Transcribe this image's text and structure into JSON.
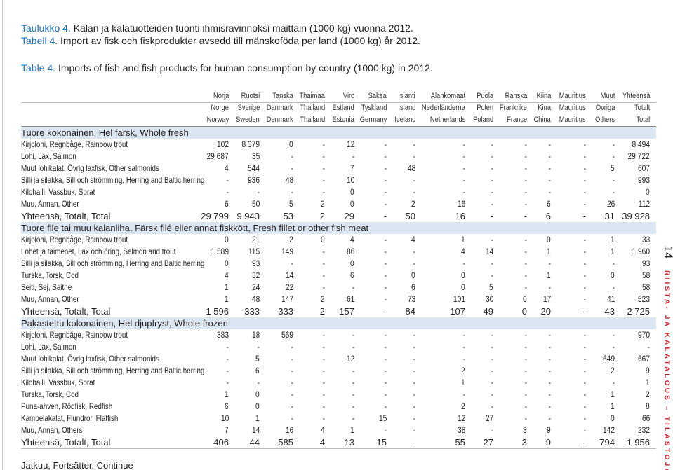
{
  "titles": [
    {
      "number": "Taulukko 4.",
      "text": "Kalan ja kalatuotteiden tuonti ihmisravinnoksi maittain (1000 kg) vuonna 2012."
    },
    {
      "number": "Tabell 4.",
      "text": "Import av fisk och fiskprodukter avsedd till mänskoföda per land (1000 kg) år 2012."
    },
    {
      "number": "Table 4.",
      "text": "Imports of fish and fish products for human consumption by country (1000 kg) in 2012."
    }
  ],
  "table": {
    "header": [
      [
        "Norja",
        "Ruotsi",
        "Tanska",
        "Thaimaa",
        "Viro",
        "Saksa",
        "Islanti",
        "Alankomaat",
        "Puola",
        "Ranska",
        "Kiina",
        "Mauritius",
        "Muut",
        "Yhteensä"
      ],
      [
        "Norge",
        "Sverige",
        "Danmark",
        "Thailand",
        "Estland",
        "Tyskland",
        "Island",
        "Nederländerna",
        "Polen",
        "Frankrike",
        "Kina",
        "Mauritius",
        "Övriga",
        "Totalt"
      ],
      [
        "Norway",
        "Sweden",
        "Denmark",
        "Thailand",
        "Estonia",
        "Germany",
        "Iceland",
        "Netherlands",
        "Poland",
        "France",
        "China",
        "Mauritius",
        "Others",
        "Total"
      ]
    ],
    "sections": [
      {
        "title": "Tuore kokonainen, Hel färsk, Whole fresh",
        "rows": [
          {
            "label": "Kirjolohi, Regnbåge, Rainbow trout",
            "cells": [
              "102",
              "8 379",
              "0",
              "-",
              "12",
              "-",
              "-",
              "-",
              "-",
              "-",
              "-",
              "-",
              "-",
              "8 494"
            ]
          },
          {
            "label": "Lohi, Lax, Salmon",
            "cells": [
              "29 687",
              "35",
              "-",
              "-",
              "-",
              "-",
              "-",
              "-",
              "-",
              "-",
              "-",
              "-",
              "-",
              "29 722"
            ]
          },
          {
            "label": "Muut lohikalat, Övrig laxfisk, Other salmonids",
            "cells": [
              "4",
              "544",
              "-",
              "-",
              "7",
              "-",
              "48",
              "-",
              "-",
              "-",
              "-",
              "-",
              "5",
              "607"
            ]
          },
          {
            "label": "Silli ja silakka, Sill och strömming, Herring and Baltic herring",
            "cells": [
              "-",
              "936",
              "48",
              "-",
              "10",
              "-",
              "-",
              "-",
              "-",
              "-",
              "-",
              "-",
              "-",
              "993"
            ]
          },
          {
            "label": "Kilohaili, Vassbuk, Sprat",
            "cells": [
              "-",
              "-",
              "-",
              "-",
              "0",
              "-",
              "-",
              "-",
              "-",
              "-",
              "-",
              "-",
              "-",
              "0"
            ]
          },
          {
            "label": "Muu, Annan, Other",
            "cells": [
              "6",
              "50",
              "5",
              "2",
              "0",
              "-",
              "2",
              "16",
              "-",
              "-",
              "6",
              "-",
              "26",
              "112"
            ]
          }
        ],
        "total": {
          "label": "Yhteensä, Totalt, Total",
          "cells": [
            "29 799",
            "9 943",
            "53",
            "2",
            "29",
            "-",
            "50",
            "16",
            "-",
            "-",
            "6",
            "-",
            "31",
            "39 928"
          ]
        }
      },
      {
        "title": "Tuore file tai muu kalanliha, Färsk filé eller annat fiskkött, Fresh fillet or other fish meat",
        "rows": [
          {
            "label": "Kirjolohi, Regnbåge, Rainbow trout",
            "cells": [
              "0",
              "21",
              "2",
              "0",
              "4",
              "-",
              "4",
              "1",
              "-",
              "-",
              "0",
              "-",
              "1",
              "33"
            ]
          },
          {
            "label": "Lohet ja taimenet, Lax och öring, Salmon and trout",
            "cells": [
              "1 589",
              "115",
              "149",
              "-",
              "86",
              "-",
              "-",
              "4",
              "14",
              "-",
              "1",
              "-",
              "1",
              "1 960"
            ]
          },
          {
            "label": "Silli ja silakka, Sill och strömming, Herring and Baltic herring",
            "cells": [
              "0",
              "93",
              "-",
              "-",
              "0",
              "-",
              "-",
              "-",
              "-",
              "-",
              "-",
              "-",
              "-",
              "93"
            ]
          },
          {
            "label": "Turska, Torsk, Cod",
            "cells": [
              "4",
              "32",
              "14",
              "-",
              "6",
              "-",
              "0",
              "0",
              "-",
              "-",
              "1",
              "-",
              "0",
              "58"
            ]
          },
          {
            "label": "Seiti, Sej, Saithe",
            "cells": [
              "1",
              "24",
              "22",
              "-",
              "-",
              "-",
              "6",
              "0",
              "5",
              "-",
              "-",
              "-",
              "-",
              "58"
            ]
          },
          {
            "label": "Muu, Annan, Other",
            "cells": [
              "1",
              "48",
              "147",
              "2",
              "61",
              "-",
              "73",
              "101",
              "30",
              "0",
              "17",
              "-",
              "41",
              "523"
            ]
          }
        ],
        "total": {
          "label": "Yhteensä, Totalt, Total",
          "cells": [
            "1 596",
            "333",
            "333",
            "2",
            "157",
            "-",
            "84",
            "107",
            "49",
            "0",
            "20",
            "-",
            "43",
            "2 725"
          ]
        }
      },
      {
        "title": "Pakastettu kokonainen, Hel djupfryst, Whole frozen",
        "rows": [
          {
            "label": "Kirjolohi, Regnbåge, Rainbow trout",
            "cells": [
              "383",
              "18",
              "569",
              "-",
              "-",
              "-",
              "-",
              "-",
              "-",
              "-",
              "-",
              "-",
              "-",
              "970"
            ]
          },
          {
            "label": "Lohi, Lax, Salmon",
            "cells": [
              "-",
              "-",
              "-",
              "-",
              "-",
              "-",
              "-",
              "-",
              "-",
              "-",
              "-",
              "-",
              "-",
              "-"
            ]
          },
          {
            "label": "Muut lohikalat, Övrig laxfisk, Other salmonids",
            "cells": [
              "-",
              "5",
              "-",
              "-",
              "12",
              "-",
              "-",
              "-",
              "-",
              "-",
              "-",
              "-",
              "649",
              "667"
            ]
          },
          {
            "label": "Silli ja silakka, Sill och strömming, Herring and Baltic herring",
            "cells": [
              "-",
              "6",
              "-",
              "-",
              "-",
              "-",
              "-",
              "2",
              "-",
              "-",
              "-",
              "-",
              "2",
              "9"
            ]
          },
          {
            "label": "Kilohaili, Vassbuk, Sprat",
            "cells": [
              "-",
              "-",
              "-",
              "-",
              "-",
              "-",
              "-",
              "1",
              "-",
              "-",
              "-",
              "-",
              "-",
              "1"
            ]
          },
          {
            "label": "Turska, Torsk, Cod",
            "cells": [
              "1",
              "0",
              "-",
              "-",
              "-",
              "-",
              "-",
              "-",
              "-",
              "-",
              "-",
              "-",
              "1",
              "2"
            ]
          },
          {
            "label": "Puna-ahven, Rödfisk, Redfish",
            "cells": [
              "6",
              "0",
              "-",
              "-",
              "-",
              "-",
              "-",
              "2",
              "-",
              "-",
              "-",
              "-",
              "1",
              "8"
            ]
          },
          {
            "label": "Kampelakalat, Flundror, Flatfish",
            "cells": [
              "10",
              "1",
              "-",
              "-",
              "-",
              "15",
              "-",
              "12",
              "27",
              "-",
              "-",
              "-",
              "0",
              "66"
            ]
          },
          {
            "label": "Muu, Annan, Others",
            "cells": [
              "7",
              "14",
              "16",
              "4",
              "1",
              "-",
              "-",
              "38",
              "-",
              "3",
              "9",
              "-",
              "142",
              "232"
            ]
          }
        ],
        "total": {
          "label": "Yhteensä, Totalt, Total",
          "cells": [
            "406",
            "44",
            "585",
            "4",
            "13",
            "15",
            "-",
            "55",
            "27",
            "3",
            "9",
            "-",
            "794",
            "1 956"
          ]
        }
      }
    ]
  },
  "footer": "Jatkuu, Fortsätter, Continue",
  "page_number": "14",
  "running_title": "RIISTA- JA KALATALOUS – TILASTOJA"
}
